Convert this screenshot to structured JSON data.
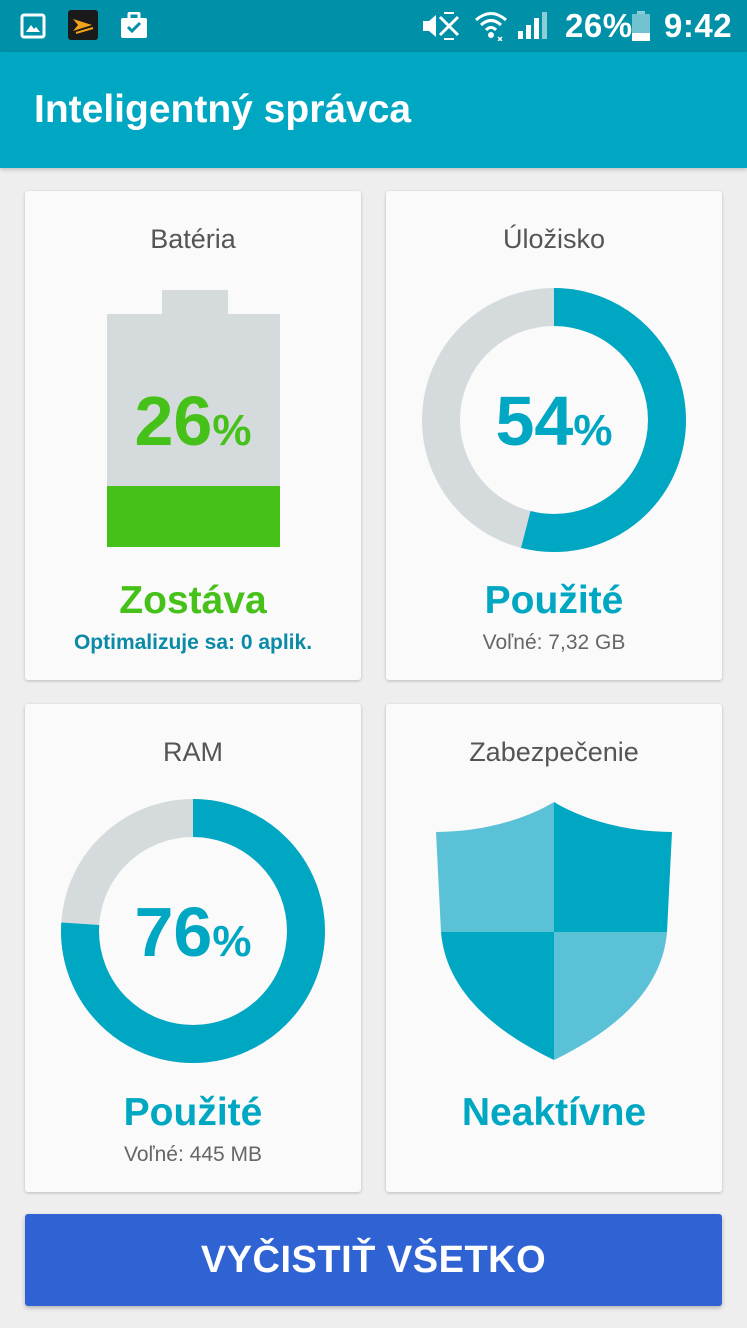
{
  "status_bar": {
    "battery_percent": "26%",
    "time": "9:42",
    "icons": [
      "gallery-icon",
      "app-icon",
      "briefcase-icon",
      "mute-icon",
      "wifi-icon",
      "signal-icon",
      "battery-icon"
    ]
  },
  "app_bar": {
    "title": "Inteligentný správca"
  },
  "cards": {
    "battery": {
      "title": "Batéria",
      "percent_value": "26",
      "percent_sign": "%",
      "level": 0.26,
      "status": "Zostáva",
      "subtext": "Optimalizuje sa: 0 aplik.",
      "color": "#46c11a"
    },
    "storage": {
      "title": "Úložisko",
      "percent_value": "54",
      "percent_sign": "%",
      "used_fraction": 0.54,
      "status": "Použité",
      "subtext": "Voľné: 7,32 GB",
      "color": "#00a7c2"
    },
    "ram": {
      "title": "RAM",
      "percent_value": "76",
      "percent_sign": "%",
      "used_fraction": 0.76,
      "status": "Použité",
      "subtext": "Voľné: 445 MB",
      "color": "#00a7c2"
    },
    "security": {
      "title": "Zabezpečenie",
      "status": "Neaktívne",
      "icon": "shield-icon",
      "color": "#00a7c2"
    }
  },
  "clean_button": {
    "label": "VYČISTIŤ VŠETKO"
  }
}
